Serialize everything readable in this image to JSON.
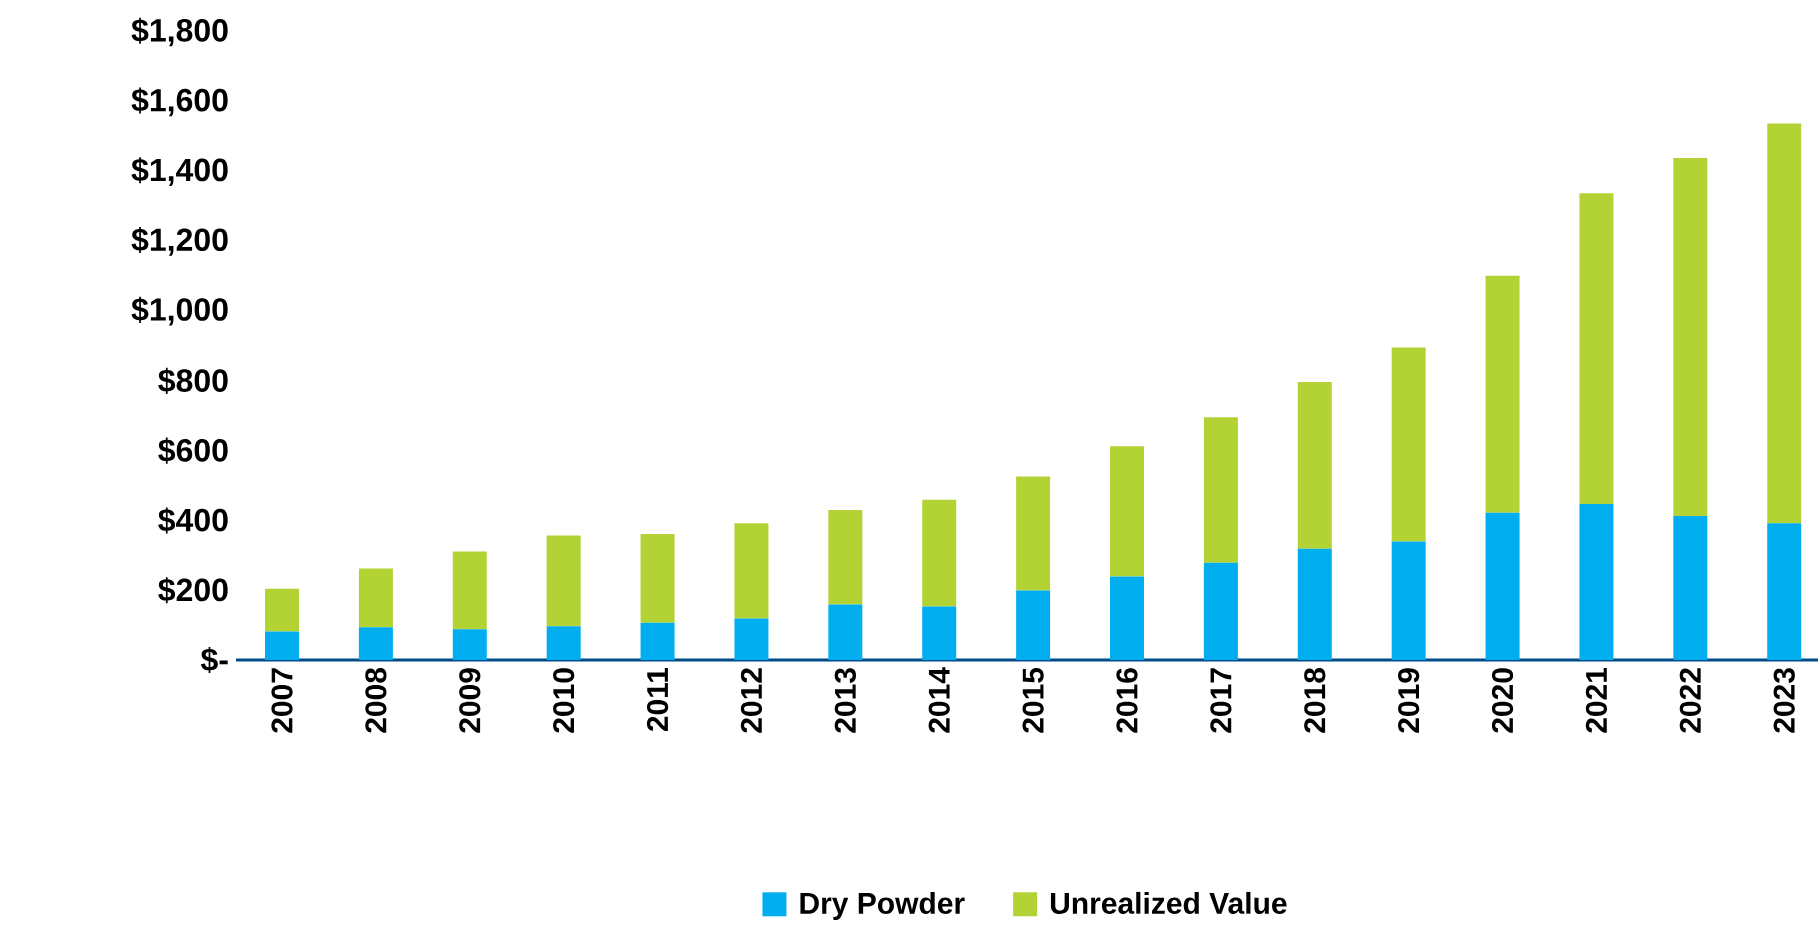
{
  "chart_data": {
    "type": "bar",
    "stacked": true,
    "categories": [
      "2007",
      "2008",
      "2009",
      "2010",
      "2011",
      "2012",
      "2013",
      "2014",
      "2015",
      "2016",
      "2017",
      "2018",
      "2019",
      "2020",
      "2021",
      "2022",
      "2023"
    ],
    "series": [
      {
        "name": "Dry Powder",
        "color": "#00aeef",
        "values": [
          82,
          94,
          88,
          97,
          107,
          119,
          159,
          153,
          199,
          239,
          279,
          319,
          340,
          422,
          447,
          413,
          392
        ]
      },
      {
        "name": "Unrealized Value",
        "color": "#b3d335",
        "values": [
          122,
          168,
          223,
          260,
          254,
          273,
          271,
          306,
          327,
          374,
          417,
          478,
          556,
          679,
          891,
          1026,
          1146
        ]
      }
    ],
    "ylim": [
      0,
      1800
    ],
    "yticks": [
      {
        "value": 0,
        "label": "$-"
      },
      {
        "value": 200,
        "label": "$200"
      },
      {
        "value": 400,
        "label": "$400"
      },
      {
        "value": 600,
        "label": "$600"
      },
      {
        "value": 800,
        "label": "$800"
      },
      {
        "value": 1000,
        "label": "$1,000"
      },
      {
        "value": 1200,
        "label": "$1,200"
      },
      {
        "value": 1400,
        "label": "$1,400"
      },
      {
        "value": 1600,
        "label": "$1,600"
      },
      {
        "value": 1800,
        "label": "$1,800"
      }
    ],
    "grid": false,
    "legend": "bottom"
  }
}
